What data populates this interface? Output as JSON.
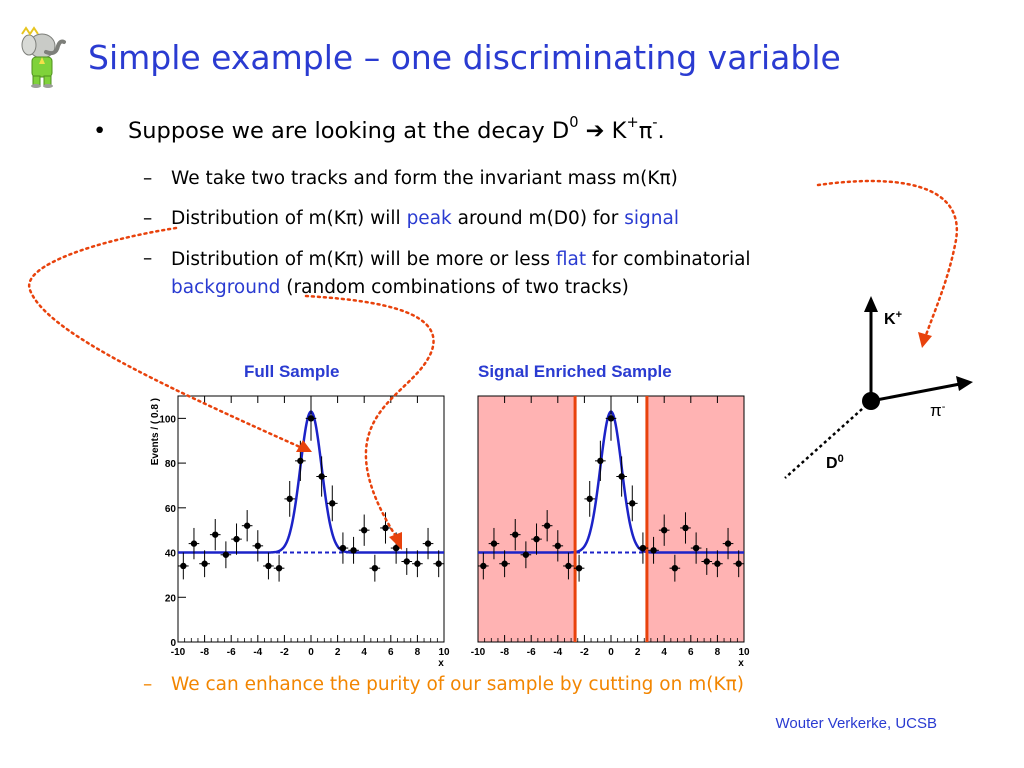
{
  "slide": {
    "title": "Simple example – one discriminating variable",
    "bullet": {
      "text_before": "Suppose we are looking at the decay D",
      "sup1": "0",
      "arrow": "➔",
      "mid": "K",
      "sup2": "+",
      "pi": "π",
      "sup3": "-",
      "end": "."
    },
    "sub1": "We take two tracks and form the invariant mass m(Kπ)",
    "sub2": {
      "a": "Distribution of m(Kπ) will ",
      "peak": "peak",
      "b": " around m(D0) for ",
      "signal": "signal"
    },
    "sub3": {
      "a": "Distribution of m(Kπ) will be more or less ",
      "flat": "flat",
      "b": " for combinatorial",
      "background": "background",
      "c": " (random combinations of two tracks)"
    },
    "sub4": "We can enhance the purity of our sample by cutting on m(Kπ)",
    "footer": "Wouter Verkerke, UCSB",
    "dash": "–",
    "bullet_dot": "•"
  },
  "decay_diagram": {
    "k_label": "K",
    "k_sup": "+",
    "pi_label": "π",
    "pi_sup": "-",
    "d_label": "D",
    "d_sup": "0"
  },
  "chart_data": [
    {
      "type": "scatter",
      "title": "Full Sample",
      "xlabel": "x",
      "ylabel": "Events / ( 0.8 )",
      "xlim": [
        -10,
        10
      ],
      "ylim": [
        0,
        110
      ],
      "xticks": [
        -10,
        -8,
        -6,
        -4,
        -2,
        0,
        2,
        4,
        6,
        8,
        10
      ],
      "yticks": [
        0,
        20,
        40,
        60,
        80,
        100
      ],
      "x": [
        -9.6,
        -8.8,
        -8.0,
        -7.2,
        -6.4,
        -5.6,
        -4.8,
        -4.0,
        -3.2,
        -2.4,
        -1.6,
        -0.8,
        0.0,
        0.8,
        1.6,
        2.4,
        3.2,
        4.0,
        4.8,
        5.6,
        6.4,
        7.2,
        8.0,
        8.8,
        9.6
      ],
      "y": [
        34,
        44,
        35,
        48,
        39,
        46,
        52,
        43,
        34,
        33,
        64,
        81,
        100,
        74,
        62,
        42,
        41,
        50,
        33,
        51,
        42,
        36,
        35,
        44,
        35
      ],
      "yerr": [
        6,
        7,
        6,
        7,
        6,
        7,
        7,
        7,
        6,
        6,
        8,
        9,
        10,
        9,
        8,
        7,
        6,
        7,
        6,
        7,
        7,
        6,
        6,
        7,
        6
      ],
      "background_level": 40,
      "peak_height": 103,
      "peak_sigma": 0.8,
      "cut_window": null
    },
    {
      "type": "scatter",
      "title": "Signal Enriched Sample",
      "xlabel": "x",
      "ylabel": "",
      "xlim": [
        -10,
        10
      ],
      "ylim": [
        0,
        110
      ],
      "xticks": [
        -10,
        -8,
        -6,
        -4,
        -2,
        0,
        2,
        4,
        6,
        8,
        10
      ],
      "yticks": [],
      "x": [
        -9.6,
        -8.8,
        -8.0,
        -7.2,
        -6.4,
        -5.6,
        -4.8,
        -4.0,
        -3.2,
        -2.4,
        -1.6,
        -0.8,
        0.0,
        0.8,
        1.6,
        2.4,
        3.2,
        4.0,
        4.8,
        5.6,
        6.4,
        7.2,
        8.0,
        8.8,
        9.6
      ],
      "y": [
        34,
        44,
        35,
        48,
        39,
        46,
        52,
        43,
        34,
        33,
        64,
        81,
        100,
        74,
        62,
        42,
        41,
        50,
        33,
        51,
        42,
        36,
        35,
        44,
        35
      ],
      "yerr": [
        6,
        7,
        6,
        7,
        6,
        7,
        7,
        7,
        6,
        6,
        8,
        9,
        10,
        9,
        8,
        7,
        6,
        7,
        6,
        7,
        7,
        6,
        6,
        7,
        6
      ],
      "background_level": 40,
      "peak_height": 103,
      "peak_sigma": 0.8,
      "cut_window": [
        -2.7,
        2.7
      ]
    }
  ],
  "colors": {
    "title": "#2a3bd1",
    "emphasis": "#2a3bd1",
    "conclusion": "#f28500",
    "arrow": "#e8420c",
    "fit_curve": "#1c23c8",
    "cut_shade": "#ffb3b3",
    "cut_line": "#e8420c"
  }
}
